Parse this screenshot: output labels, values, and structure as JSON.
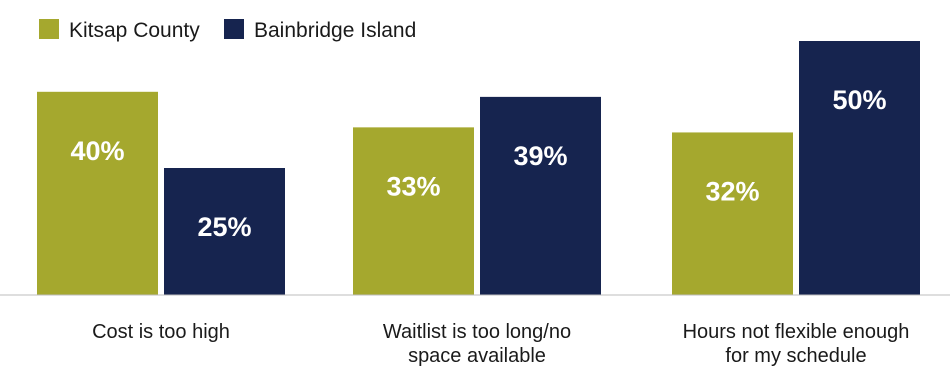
{
  "chart_data": {
    "type": "bar",
    "title": "",
    "xlabel": "",
    "ylabel": "",
    "ylim": [
      0,
      50
    ],
    "grid": false,
    "legend_position": "top-left",
    "categories": [
      [
        "Cost is too high"
      ],
      [
        "Waitlist is too long/no",
        "space available"
      ],
      [
        "Hours not flexible enough",
        "for my schedule"
      ]
    ],
    "series": [
      {
        "name": "Kitsap County",
        "color": "#a5a82e",
        "values": [
          40,
          33,
          32
        ],
        "labels": [
          "40%",
          "33%",
          "32%"
        ]
      },
      {
        "name": "Bainbridge Island",
        "color": "#16244f",
        "values": [
          25,
          39,
          50
        ],
        "labels": [
          "25%",
          "39%",
          "50%"
        ]
      }
    ]
  }
}
